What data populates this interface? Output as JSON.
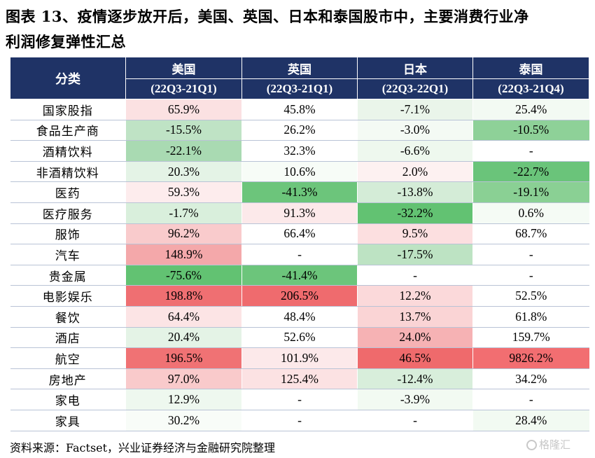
{
  "title_line1": "图表 13、疫情逐步放开后，美国、英国、日本和泰国股市中，主要消费行业净",
  "title_line2": "利润修复弹性汇总",
  "header": {
    "category_label": "分类",
    "countries": [
      "美国",
      "英国",
      "日本",
      "泰国"
    ],
    "periods": [
      "(22Q3-21Q1)",
      "(22Q3-21Q1)",
      "(22Q3-22Q1)",
      "(22Q3-21Q4)"
    ]
  },
  "rows": [
    {
      "name": "国家股指",
      "values": [
        "65.9%",
        "45.8%",
        "-7.1%",
        "25.4%"
      ],
      "colors": [
        "#fbe1e2",
        "#ffffff",
        "#eaf5ea",
        "#f3faf3"
      ]
    },
    {
      "name": "食品生产商",
      "values": [
        "-15.5%",
        "26.2%",
        "-3.0%",
        "-10.5%"
      ],
      "colors": [
        "#bfe3c5",
        "#ffffff",
        "#f4faf4",
        "#8ed198"
      ]
    },
    {
      "name": "酒精饮料",
      "values": [
        "-22.1%",
        "32.3%",
        "-6.6%",
        "-"
      ],
      "colors": [
        "#a9dab2",
        "#ffffff",
        "#eef8ee",
        "#ffffff"
      ]
    },
    {
      "name": "非酒精饮料",
      "values": [
        "20.3%",
        "10.6%",
        "2.0%",
        "-22.7%"
      ],
      "colors": [
        "#e4f3e6",
        "#f7fcf7",
        "#fdf1f1",
        "#6ac47a"
      ]
    },
    {
      "name": "医药",
      "values": [
        "59.3%",
        "-41.3%",
        "-13.8%",
        "-19.1%"
      ],
      "colors": [
        "#fdeced",
        "#6cc57b",
        "#d4ecd7",
        "#8ad094"
      ]
    },
    {
      "name": "医疗服务",
      "values": [
        "-1.7%",
        "91.3%",
        "-32.2%",
        "0.6%"
      ],
      "colors": [
        "#d9efdc",
        "#fce9ea",
        "#62c272",
        "#f5fbf5"
      ]
    },
    {
      "name": "服饰",
      "values": [
        "96.2%",
        "66.4%",
        "9.5%",
        "68.7%"
      ],
      "colors": [
        "#f9cbcc",
        "#ffffff",
        "#fcdfe0",
        "#ffffff"
      ]
    },
    {
      "name": "汽车",
      "values": [
        "148.9%",
        "-",
        "-17.5%",
        "-"
      ],
      "colors": [
        "#f4a8aa",
        "#ffffff",
        "#bde3c3",
        "#ffffff"
      ]
    },
    {
      "name": "贵金属",
      "values": [
        "-75.6%",
        "-41.4%",
        "-",
        "-"
      ],
      "colors": [
        "#62c272",
        "#6cc57b",
        "#ffffff",
        "#ffffff"
      ]
    },
    {
      "name": "电影娱乐",
      "values": [
        "198.8%",
        "206.5%",
        "12.2%",
        "52.5%"
      ],
      "colors": [
        "#ef6f72",
        "#ef6b6e",
        "#fbd9da",
        "#ffffff"
      ]
    },
    {
      "name": "餐饮",
      "values": [
        "64.4%",
        "48.4%",
        "13.7%",
        "61.8%"
      ],
      "colors": [
        "#fce4e5",
        "#ffffff",
        "#fad4d5",
        "#ffffff"
      ]
    },
    {
      "name": "酒店",
      "values": [
        "20.4%",
        "52.6%",
        "24.0%",
        "159.7%"
      ],
      "colors": [
        "#e4f3e6",
        "#ffffff",
        "#f6b2b4",
        "#ffffff"
      ]
    },
    {
      "name": "航空",
      "values": [
        "196.5%",
        "101.9%",
        "46.5%",
        "9826.2%"
      ],
      "colors": [
        "#f07274",
        "#fce9ea",
        "#ef6a6c",
        "#f26e71"
      ]
    },
    {
      "name": "房地产",
      "values": [
        "97.0%",
        "125.4%",
        "-12.4%",
        "34.2%"
      ],
      "colors": [
        "#f9cacb",
        "#fce2e3",
        "#d8eedb",
        "#ffffff"
      ]
    },
    {
      "name": "家电",
      "values": [
        "12.9%",
        "-",
        "-3.9%",
        "-"
      ],
      "colors": [
        "#eef8ef",
        "#ffffff",
        "#f2faf2",
        "#ffffff"
      ]
    },
    {
      "name": "家具",
      "values": [
        "30.2%",
        "-",
        "-",
        "28.4%"
      ],
      "colors": [
        "#f8fcf8",
        "#ffffff",
        "#ffffff",
        "#f2faf2"
      ]
    }
  ],
  "footer": "资料来源：Factset，兴业证券经济与金融研究院整理",
  "watermark": "格隆汇"
}
